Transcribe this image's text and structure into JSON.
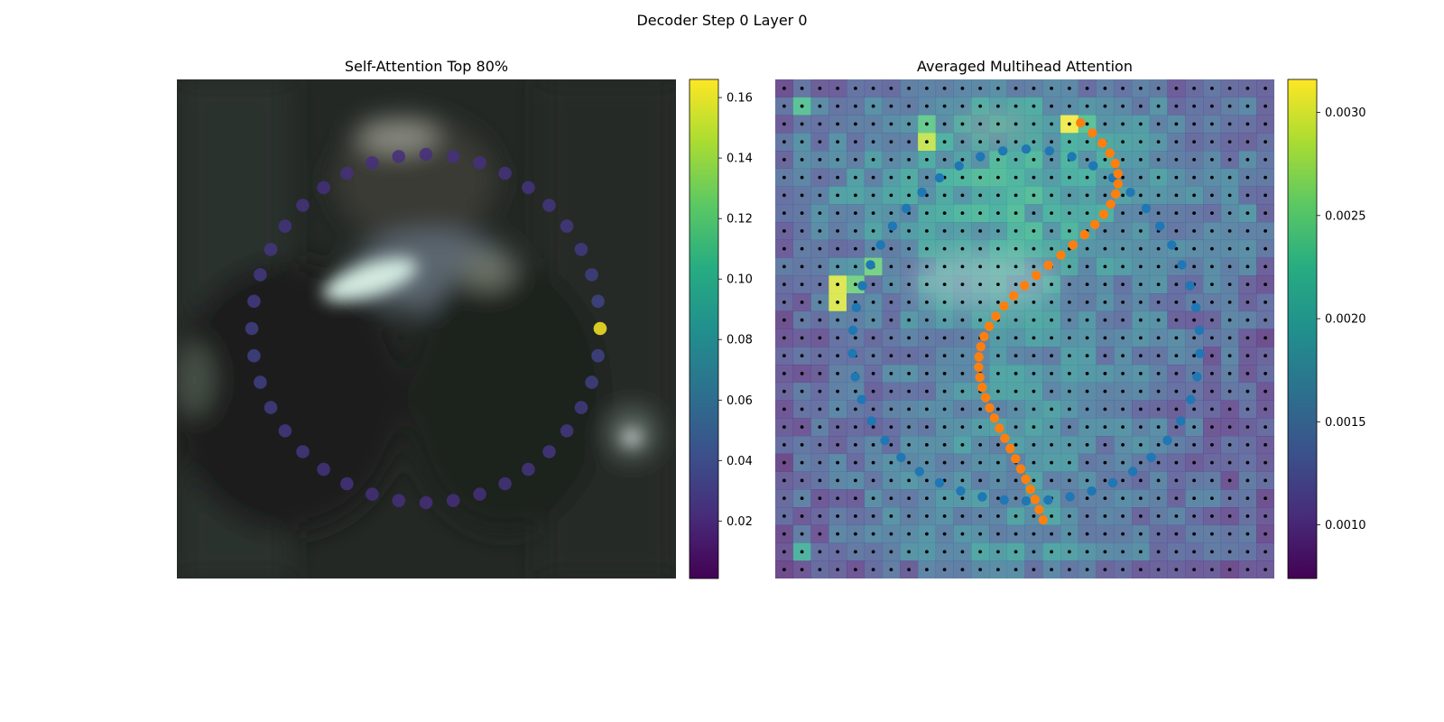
{
  "figure": {
    "suptitle": "Decoder Step 0 Layer 0"
  },
  "chart_data": [
    {
      "type": "scatter",
      "title": "Self-Attention Top 80%",
      "background": "blurred dark photo",
      "colormap": "viridis",
      "x": [
        0,
        1,
        2,
        3,
        4,
        5,
        6,
        7,
        8,
        9,
        10,
        11,
        12,
        13,
        14,
        15,
        16,
        17,
        18,
        19,
        20,
        21,
        22,
        23,
        24,
        25,
        26,
        27,
        28,
        29,
        30,
        31,
        32,
        33,
        34,
        35,
        36,
        37,
        38,
        39
      ],
      "values": [
        0.165,
        0.035,
        0.032,
        0.03,
        0.028,
        0.027,
        0.026,
        0.025,
        0.024,
        0.024,
        0.023,
        0.023,
        0.023,
        0.024,
        0.024,
        0.025,
        0.026,
        0.027,
        0.028,
        0.03,
        0.032,
        0.034,
        0.032,
        0.03,
        0.028,
        0.027,
        0.026,
        0.025,
        0.024,
        0.024,
        0.023,
        0.023,
        0.024,
        0.025,
        0.026,
        0.027,
        0.028,
        0.03,
        0.032,
        0.034
      ],
      "colorbar": {
        "ticks": [
          0.02,
          0.04,
          0.06,
          0.08,
          0.1,
          0.12,
          0.14,
          0.16
        ],
        "range": [
          0.001,
          0.166
        ]
      },
      "highlight_color": "#fde725",
      "point_color_default": "#453581"
    },
    {
      "type": "heatmap",
      "title": "Averaged Multihead Attention",
      "colormap": "viridis",
      "grid_size": [
        28,
        28
      ],
      "colorbar": {
        "ticks": [
          0.001,
          0.0015,
          0.002,
          0.0025,
          0.003
        ],
        "range": [
          0.00074,
          0.00316
        ]
      },
      "series": [
        {
          "color": "#1f77b4",
          "x": [
            0.0
          ],
          "y": [
            0.0
          ]
        },
        {
          "color": "#ff7f0e",
          "x": [
            0.0
          ],
          "y": [
            0.0
          ]
        }
      ],
      "hot_cells": [
        {
          "col": 3,
          "row": 11,
          "value": 0.003
        },
        {
          "col": 3,
          "row": 12,
          "value": 0.003
        },
        {
          "col": 16,
          "row": 2,
          "value": 0.0031
        },
        {
          "col": 8,
          "row": 3,
          "value": 0.0029
        },
        {
          "col": 1,
          "row": 1,
          "value": 0.0023
        },
        {
          "col": 5,
          "row": 10,
          "value": 0.0025
        },
        {
          "col": 4,
          "row": 11,
          "value": 0.0025
        },
        {
          "col": 8,
          "row": 2,
          "value": 0.0024
        },
        {
          "col": 17,
          "row": 2,
          "value": 0.0023
        },
        {
          "col": 1,
          "row": 26,
          "value": 0.0021
        }
      ]
    }
  ]
}
